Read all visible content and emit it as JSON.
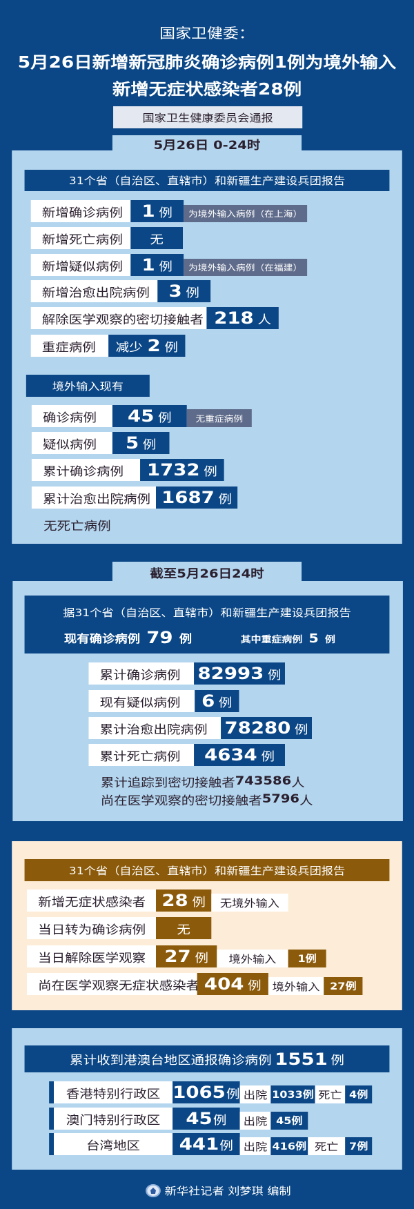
{
  "colors": {
    "background": "#0b4786",
    "panel": "#b3d5ee",
    "note": "#5e6b8a",
    "cream": "#fdedd8",
    "brown": "#8b5a0a"
  },
  "header": {
    "org_title": "国家卫健委：",
    "headline_1": "5月26日新增新冠肺炎确诊病例1例为境外输入",
    "headline_2": "新增无症状感染者28例",
    "source": "国家卫生健康委员会通报"
  },
  "daily": {
    "tab": "5月26日 0-24时",
    "report_header": "31个省（自治区、直辖市）和新疆生产建设兵团报告",
    "rows": [
      {
        "label": "新增确诊病例",
        "value": "1",
        "unit": "例",
        "note": "为境外输入病例（在上海）"
      },
      {
        "label": "新增死亡病例",
        "value": "无"
      },
      {
        "label": "新增疑似病例",
        "value": "1",
        "unit": "例",
        "note": "为境外输入病例（在福建）"
      },
      {
        "label": "新增治愈出院病例",
        "value": "3",
        "unit": "例"
      },
      {
        "label": "解除医学观察的密切接触者",
        "value": "218",
        "unit": "人"
      },
      {
        "label": "重症病例",
        "prefix": "减少",
        "value": "2",
        "unit": "例"
      }
    ],
    "imported_header": "境外输入现有",
    "imported_rows": [
      {
        "label": "确诊病例",
        "value": "45",
        "unit": "例",
        "note": "无重症病例"
      },
      {
        "label": "疑似病例",
        "value": "5",
        "unit": "例"
      },
      {
        "label": "累计确诊病例",
        "value": "1732",
        "unit": "例"
      },
      {
        "label": "累计治愈出院病例",
        "value": "1687",
        "unit": "例"
      }
    ],
    "imported_note": "无死亡病例"
  },
  "cumulative": {
    "tab": "截至5月26日24时",
    "report_line": "据31个省（自治区、直辖市）和新疆生产建设兵团报告",
    "current_label": "现有确诊病例",
    "current_value": "79",
    "current_unit": "例",
    "severe_label": "其中重症病例",
    "severe_value": "5",
    "severe_unit": "例",
    "rows": [
      {
        "label": "累计确诊病例",
        "value": "82993",
        "unit": "例"
      },
      {
        "label": "现有疑似病例",
        "value": "6",
        "unit": "例"
      },
      {
        "label": "累计治愈出院病例",
        "value": "78280",
        "unit": "例"
      },
      {
        "label": "累计死亡病例",
        "value": "4634",
        "unit": "例"
      }
    ],
    "traced_text": "累计追踪到密切接触者",
    "traced_value": "743586",
    "traced_unit": "人",
    "observing_text": "尚在医学观察的密切接触者",
    "observing_value": "5796",
    "observing_unit": "人"
  },
  "asymptomatic": {
    "header": "31个省（自治区、直辖市）和新疆生产建设兵团报告",
    "rows": [
      {
        "label": "新增无症状感染者",
        "value": "28",
        "unit": "例",
        "note": "无境外输入"
      },
      {
        "label": "当日转为确诊病例",
        "value": "无"
      },
      {
        "label": "当日解除医学观察",
        "value": "27",
        "unit": "例",
        "note": "境外输入",
        "note_value": "1例"
      },
      {
        "label": "尚在医学观察无症状感染者",
        "value": "404",
        "unit": "例",
        "note": "境外输入",
        "note_value": "27例"
      }
    ]
  },
  "hmt": {
    "title": "累计收到港澳台地区通报确诊病例",
    "total": "1551",
    "unit": "例",
    "rows": [
      {
        "region": "香港特别行政区",
        "value": "1065",
        "unit": "例",
        "discharged_label": "出院",
        "discharged": "1033例",
        "death_label": "死亡",
        "deaths": "4例"
      },
      {
        "region": "澳门特别行政区",
        "value": "45",
        "unit": "例",
        "discharged_label": "出院",
        "discharged": "45例"
      },
      {
        "region": "台湾地区",
        "value": "441",
        "unit": "例",
        "discharged_label": "出院",
        "discharged": "416例",
        "death_label": "死亡",
        "deaths": "7例"
      }
    ]
  },
  "footer": {
    "credit": "新华社记者 刘梦琪 编制"
  }
}
